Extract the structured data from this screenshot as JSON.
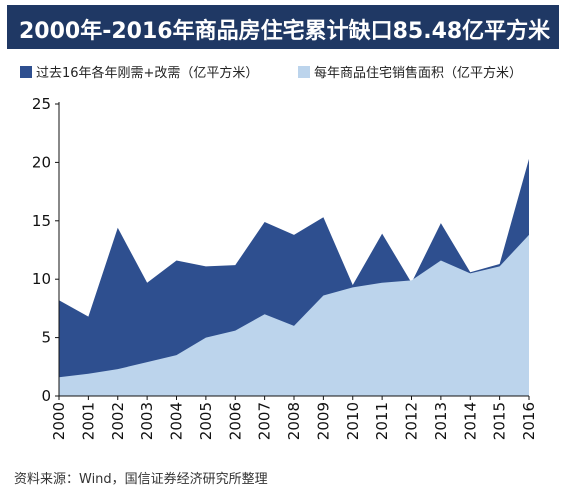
{
  "title": "2000年-2016年商品房住宅累计缺口85.48亿平方米",
  "source": "资料来源：Wind，国信证券经济研究所整理",
  "colors": {
    "title_bg": "#1f3864",
    "dark_series": "#2e4f8f",
    "light_series": "#bcd4ec",
    "axis": "#111111"
  },
  "chart_data": {
    "type": "area",
    "x": [
      "2000",
      "2001",
      "2002",
      "2003",
      "2004",
      "2005",
      "2006",
      "2007",
      "2008",
      "2009",
      "2010",
      "2011",
      "2012",
      "2013",
      "2014",
      "2015",
      "2016"
    ],
    "series": [
      {
        "name": "过去16年各年刚需+改需（亿平方米）",
        "values": [
          8.2,
          6.8,
          14.4,
          9.7,
          11.6,
          11.1,
          11.2,
          14.9,
          13.8,
          15.3,
          9.5,
          13.9,
          9.7,
          14.8,
          10.6,
          11.3,
          20.3
        ]
      },
      {
        "name": "每年商品住宅销售面积（亿平方米）",
        "values": [
          1.6,
          1.9,
          2.3,
          2.9,
          3.5,
          5.0,
          5.6,
          7.0,
          6.0,
          8.6,
          9.3,
          9.7,
          9.9,
          11.6,
          10.5,
          11.1,
          13.8
        ]
      }
    ],
    "y_ticks": [
      0,
      5,
      10,
      15,
      20,
      25
    ],
    "ylim": [
      0,
      25
    ],
    "legend_position": "top",
    "grid": false
  }
}
